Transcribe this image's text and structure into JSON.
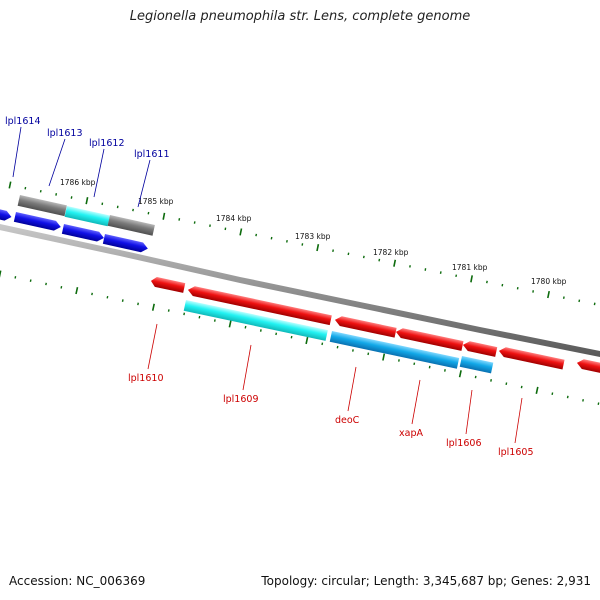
{
  "title": "Legionella pneumophila str. Lens, complete genome",
  "footer": {
    "accession": "Accession: NC_006369",
    "stats": "Topology: circular; Length: 3,345,687 bp; Genes: 2,931"
  },
  "colors": {
    "forward_gene": "#1010e6",
    "reverse_gene": "#ee1111",
    "blue_label": "#00009e",
    "red_label": "#cc0000",
    "cyan_gene": "#22f2f2",
    "sky_gene": "#12a8e8",
    "gray_gene": "#7a7a7a",
    "tick_color": "#0d6b0d",
    "backbone": "#909090"
  },
  "scale": {
    "unit": "kbp",
    "outer_labels": [
      "1786 kbp",
      "1785 kbp",
      "1784 kbp",
      "1783 kbp",
      "1782 kbp",
      "1781 kbp",
      "1780 kbp"
    ]
  },
  "genes": {
    "forward": [
      {
        "label": "lpl1614",
        "color": "forward"
      },
      {
        "label": "lpl1613",
        "color": "forward"
      },
      {
        "label": "lpl1612",
        "color": "forward"
      },
      {
        "label": "lpl1611",
        "color": "forward"
      }
    ],
    "reverse": [
      {
        "label": "lpl1610",
        "color": "reverse"
      },
      {
        "label": "lpl1609",
        "color": "reverse"
      },
      {
        "label": "deoC",
        "color": "reverse"
      },
      {
        "label": "xapA",
        "color": "reverse"
      },
      {
        "label": "lpl1606",
        "color": "reverse"
      },
      {
        "label": "lpl1605",
        "color": "reverse"
      }
    ]
  }
}
